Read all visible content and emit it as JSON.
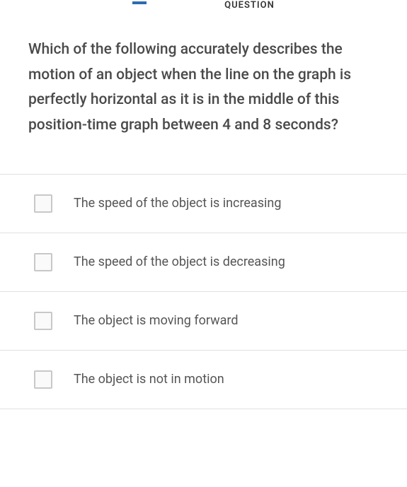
{
  "header": {
    "fragment": "QUESTION"
  },
  "question": {
    "text": "Which of the following accurately describes the motion of an object when the line on the graph is perfectly horizontal as it is in the middle of this position-time graph between 4 and 8 seconds?"
  },
  "options": [
    {
      "label": "The speed of the object is increasing",
      "checked": false
    },
    {
      "label": "The speed of the object is decreasing",
      "checked": false
    },
    {
      "label": "The object is moving forward",
      "checked": false
    },
    {
      "label": "The object is not in motion",
      "checked": false
    }
  ],
  "colors": {
    "background": "#ffffff",
    "text_primary": "#4a4a4a",
    "text_option": "#555555",
    "border": "#e0e0e0",
    "checkbox_border": "#c8c8c8",
    "accent": "#2b6cb0"
  },
  "typography": {
    "question_fontsize": 21,
    "option_fontsize": 18,
    "header_fontsize": 13
  }
}
